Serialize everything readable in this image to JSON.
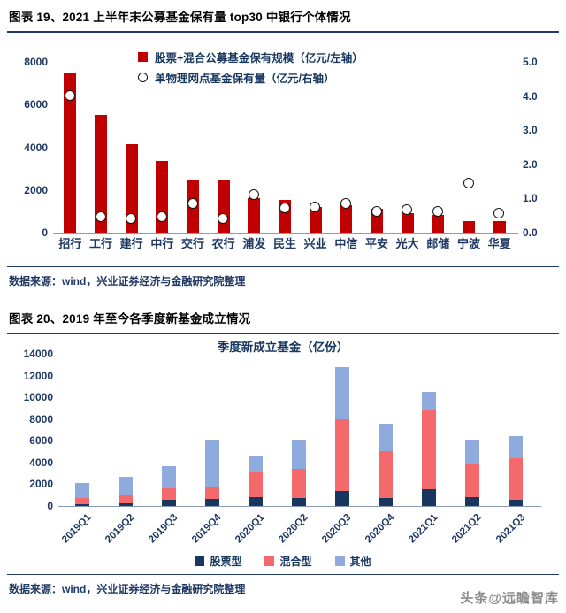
{
  "page": {
    "watermark": "头条@远瞻智库"
  },
  "figure19": {
    "header": "图表 19、2021 上半年末公募基金保有量 top30 中银行个体情况",
    "source": "数据来源：wind，兴业证券经济与金融研究院整理"
  },
  "figure20": {
    "header": "图表 20、2019 年至今各季度新基金成立情况",
    "source": "数据来源：wind，兴业证券经济与金融研究院整理"
  },
  "chart_data": [
    {
      "type": "bar",
      "title": "2021上半年末公募基金保有量top30中银行个体情况",
      "categories": [
        "招行",
        "工行",
        "建行",
        "中行",
        "交行",
        "农行",
        "浦发",
        "民生",
        "兴业",
        "中信",
        "平安",
        "光大",
        "邮储",
        "宁波",
        "华夏"
      ],
      "series": [
        {
          "name": "股票+混合公募基金保有规模（亿元/左轴）",
          "style": "bar",
          "axis": "left",
          "color": "#C00000",
          "values": [
            7500,
            5500,
            4150,
            3350,
            2480,
            2480,
            1620,
            1530,
            1200,
            1300,
            1120,
            920,
            830,
            550,
            540
          ]
        },
        {
          "name": "单物理网点基金保有量（亿元/右轴）",
          "style": "circle-marker",
          "axis": "right",
          "color": "#FFFFFF",
          "values": [
            4.0,
            0.45,
            0.4,
            0.45,
            0.85,
            0.4,
            1.1,
            0.7,
            0.75,
            0.85,
            0.6,
            0.65,
            0.6,
            1.45,
            0.55
          ]
        }
      ],
      "left_axis": {
        "min": 0,
        "max": 8000,
        "step": 2000,
        "ticks": [
          "0",
          "2000",
          "4000",
          "6000",
          "8000"
        ]
      },
      "right_axis": {
        "min": 0,
        "max": 5,
        "step": 1,
        "ticks": [
          "0.0",
          "1.0",
          "2.0",
          "3.0",
          "4.0",
          "5.0"
        ]
      },
      "legend_position": "top-inside",
      "grid": false
    },
    {
      "type": "bar",
      "stacked": true,
      "title": "季度新成立基金（亿份）",
      "categories": [
        "2019Q1",
        "2019Q2",
        "2019Q3",
        "2019Q4",
        "2020Q1",
        "2020Q2",
        "2020Q3",
        "2020Q4",
        "2021Q1",
        "2021Q2",
        "2021Q3"
      ],
      "series": [
        {
          "name": "股票型",
          "color": "#17375E",
          "values": [
            150,
            250,
            550,
            650,
            800,
            700,
            1400,
            700,
            1550,
            800,
            600
          ]
        },
        {
          "name": "混合型",
          "color": "#F4696B",
          "values": [
            600,
            750,
            1050,
            1050,
            2300,
            2750,
            6600,
            4350,
            7350,
            3000,
            3800
          ]
        },
        {
          "name": "其他",
          "color": "#8FAADC",
          "values": [
            1350,
            1650,
            2100,
            4400,
            1550,
            2650,
            4800,
            2550,
            1600,
            2300,
            2000
          ]
        }
      ],
      "y_axis": {
        "min": 0,
        "max": 14000,
        "step": 2000,
        "ticks": [
          "0",
          "2000",
          "4000",
          "6000",
          "8000",
          "10000",
          "12000",
          "14000"
        ]
      },
      "legend_position": "bottom",
      "grid": false
    }
  ]
}
